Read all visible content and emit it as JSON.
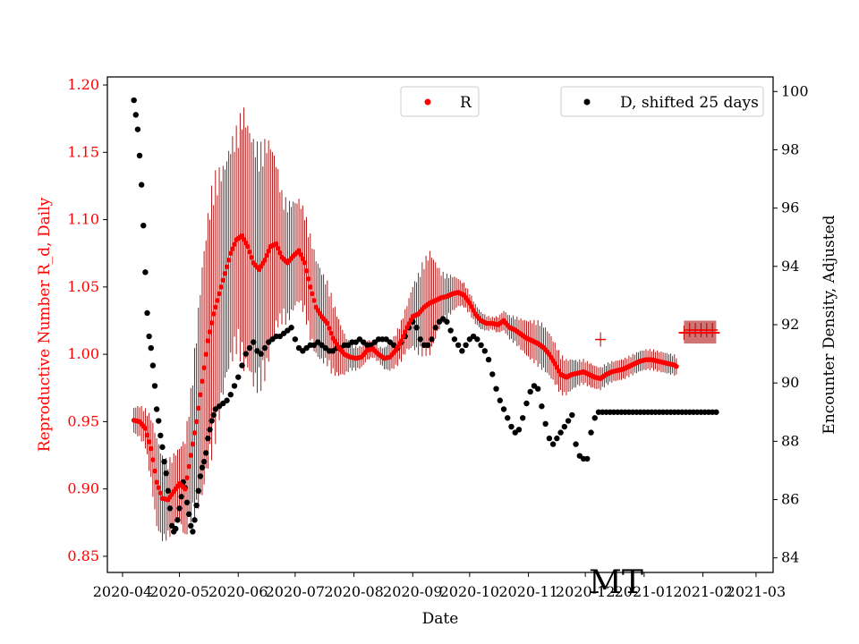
{
  "chart_data": {
    "type": "scatter",
    "state_label": "MT",
    "xlabel": "Date",
    "ylabel_left": "Reproductive Number R_d, Daily",
    "ylabel_right": "Encounter Density, Adjusted",
    "left_axis_color": "#ff0000",
    "x_ticks": [
      "2020-04",
      "2020-05",
      "2020-06",
      "2020-07",
      "2020-08",
      "2020-09",
      "2020-10",
      "2020-11",
      "2020-12",
      "2021-01",
      "2021-02",
      "2021-03"
    ],
    "x_range_days": [
      -8,
      343
    ],
    "y_left_range": [
      0.838,
      1.206
    ],
    "y_left_ticks": [
      "0.85",
      "0.90",
      "0.95",
      "1.00",
      "1.05",
      "1.10",
      "1.15",
      "1.20"
    ],
    "y_right_range": [
      83.5,
      100.5
    ],
    "y_right_ticks": [
      "84",
      "86",
      "88",
      "90",
      "92",
      "94",
      "96",
      "98",
      "100"
    ],
    "legend": {
      "r_label": "R",
      "d_label": "D, shifted 25 days"
    },
    "colors": {
      "r": "#ff0000",
      "r_error": "#aa0000",
      "d": "#000000"
    },
    "series_r_anchors": {
      "description_days_since_2020-04-01": true,
      "points": [
        [
          6,
          0.951
        ],
        [
          9,
          0.95
        ],
        [
          12,
          0.945
        ],
        [
          15,
          0.93
        ],
        [
          18,
          0.905
        ],
        [
          21,
          0.893
        ],
        [
          24,
          0.892
        ],
        [
          27,
          0.898
        ],
        [
          30,
          0.904
        ],
        [
          33,
          0.9
        ],
        [
          36,
          0.925
        ],
        [
          39,
          0.95
        ],
        [
          42,
          0.98
        ],
        [
          45,
          1.01
        ],
        [
          48,
          1.03
        ],
        [
          51,
          1.045
        ],
        [
          54,
          1.06
        ],
        [
          57,
          1.075
        ],
        [
          60,
          1.085
        ],
        [
          63,
          1.088
        ],
        [
          66,
          1.08
        ],
        [
          69,
          1.068
        ],
        [
          72,
          1.063
        ],
        [
          75,
          1.07
        ],
        [
          78,
          1.08
        ],
        [
          81,
          1.082
        ],
        [
          84,
          1.072
        ],
        [
          87,
          1.068
        ],
        [
          90,
          1.073
        ],
        [
          93,
          1.077
        ],
        [
          96,
          1.068
        ],
        [
          99,
          1.05
        ],
        [
          102,
          1.035
        ],
        [
          105,
          1.028
        ],
        [
          108,
          1.023
        ],
        [
          111,
          1.012
        ],
        [
          114,
          1.005
        ],
        [
          117,
          1.0
        ],
        [
          120,
          0.998
        ],
        [
          123,
          0.997
        ],
        [
          126,
          0.998
        ],
        [
          129,
          1.003
        ],
        [
          132,
          1.004
        ],
        [
          135,
          1.0
        ],
        [
          138,
          0.997
        ],
        [
          141,
          0.998
        ],
        [
          144,
          1.003
        ],
        [
          147,
          1.01
        ],
        [
          150,
          1.02
        ],
        [
          153,
          1.028
        ],
        [
          156,
          1.03
        ],
        [
          159,
          1.035
        ],
        [
          162,
          1.038
        ],
        [
          165,
          1.04
        ],
        [
          168,
          1.042
        ],
        [
          171,
          1.043
        ],
        [
          174,
          1.045
        ],
        [
          177,
          1.046
        ],
        [
          180,
          1.044
        ],
        [
          183,
          1.038
        ],
        [
          186,
          1.03
        ],
        [
          189,
          1.025
        ],
        [
          192,
          1.023
        ],
        [
          195,
          1.023
        ],
        [
          198,
          1.022
        ],
        [
          201,
          1.025
        ],
        [
          204,
          1.02
        ],
        [
          207,
          1.018
        ],
        [
          210,
          1.015
        ],
        [
          213,
          1.012
        ],
        [
          216,
          1.01
        ],
        [
          219,
          1.008
        ],
        [
          222,
          1.005
        ],
        [
          225,
          1.0
        ],
        [
          228,
          0.993
        ],
        [
          231,
          0.985
        ],
        [
          234,
          0.983
        ],
        [
          237,
          0.985
        ],
        [
          240,
          0.986
        ],
        [
          243,
          0.987
        ],
        [
          246,
          0.985
        ],
        [
          249,
          0.983
        ],
        [
          252,
          0.982
        ],
        [
          255,
          0.985
        ],
        [
          258,
          0.987
        ],
        [
          261,
          0.988
        ],
        [
          264,
          0.989
        ],
        [
          267,
          0.991
        ],
        [
          270,
          0.993
        ],
        [
          273,
          0.995
        ],
        [
          276,
          0.996
        ],
        [
          279,
          0.996
        ],
        [
          282,
          0.995
        ],
        [
          285,
          0.994
        ],
        [
          288,
          0.993
        ],
        [
          291,
          0.992
        ],
        [
          292,
          0.991
        ]
      ]
    },
    "series_r_error_anchors": [
      [
        6,
        0.01
      ],
      [
        12,
        0.015
      ],
      [
        18,
        0.035
      ],
      [
        24,
        0.03
      ],
      [
        30,
        0.028
      ],
      [
        36,
        0.05
      ],
      [
        42,
        0.09
      ],
      [
        48,
        0.105
      ],
      [
        54,
        0.085
      ],
      [
        60,
        0.085
      ],
      [
        64,
        0.1
      ],
      [
        66,
        0.095
      ],
      [
        70,
        0.095
      ],
      [
        76,
        0.09
      ],
      [
        84,
        0.05
      ],
      [
        92,
        0.04
      ],
      [
        100,
        0.04
      ],
      [
        110,
        0.03
      ],
      [
        120,
        0.01
      ],
      [
        135,
        0.006
      ],
      [
        150,
        0.018
      ],
      [
        158,
        0.035
      ],
      [
        162,
        0.04
      ],
      [
        168,
        0.02
      ],
      [
        178,
        0.01
      ],
      [
        195,
        0.005
      ],
      [
        210,
        0.012
      ],
      [
        220,
        0.018
      ],
      [
        232,
        0.015
      ],
      [
        240,
        0.01
      ],
      [
        260,
        0.008
      ],
      [
        292,
        0.008
      ]
    ],
    "series_r_outliers": [
      [
        252,
        1.011
      ],
      [
        296,
        1.016
      ],
      [
        299,
        1.018
      ],
      [
        302,
        1.018
      ],
      [
        305,
        1.018
      ],
      [
        308,
        1.018
      ],
      [
        311,
        1.018
      ]
    ],
    "series_d_anchors": {
      "description_days_since_2020-04-01": true,
      "points": [
        [
          6,
          99.7
        ],
        [
          7,
          99.2
        ],
        [
          8,
          98.7
        ],
        [
          9,
          97.8
        ],
        [
          10,
          96.8
        ],
        [
          11,
          95.4
        ],
        [
          12,
          93.8
        ],
        [
          13,
          92.4
        ],
        [
          14,
          91.6
        ],
        [
          15,
          91.2
        ],
        [
          16,
          90.6
        ],
        [
          17,
          89.9
        ],
        [
          18,
          89.1
        ],
        [
          19,
          88.7
        ],
        [
          20,
          88.2
        ],
        [
          21,
          87.8
        ],
        [
          22,
          87.3
        ],
        [
          23,
          86.9
        ],
        [
          24,
          86.3
        ],
        [
          25,
          85.7
        ],
        [
          26,
          85.1
        ],
        [
          27,
          84.9
        ],
        [
          28,
          85.0
        ],
        [
          29,
          85.3
        ],
        [
          30,
          85.7
        ],
        [
          31,
          86.1
        ],
        [
          32,
          86.6
        ],
        [
          33,
          86.4
        ],
        [
          34,
          85.9
        ],
        [
          35,
          85.5
        ],
        [
          36,
          85.1
        ],
        [
          37,
          84.9
        ],
        [
          38,
          85.3
        ],
        [
          39,
          85.8
        ],
        [
          40,
          86.3
        ],
        [
          41,
          86.8
        ],
        [
          42,
          87.1
        ],
        [
          43,
          87.3
        ],
        [
          44,
          87.6
        ],
        [
          45,
          88.1
        ],
        [
          46,
          88.4
        ],
        [
          47,
          88.7
        ],
        [
          48,
          88.9
        ],
        [
          49,
          89.1
        ],
        [
          51,
          89.2
        ],
        [
          53,
          89.3
        ],
        [
          55,
          89.4
        ],
        [
          57,
          89.6
        ],
        [
          59,
          89.9
        ],
        [
          61,
          90.2
        ],
        [
          63,
          90.6
        ],
        [
          65,
          91.0
        ],
        [
          67,
          91.2
        ],
        [
          69,
          91.4
        ],
        [
          71,
          91.1
        ],
        [
          73,
          91.0
        ],
        [
          75,
          91.2
        ],
        [
          77,
          91.4
        ],
        [
          79,
          91.5
        ],
        [
          81,
          91.6
        ],
        [
          83,
          91.6
        ],
        [
          85,
          91.7
        ],
        [
          87,
          91.8
        ],
        [
          89,
          91.9
        ],
        [
          91,
          91.5
        ],
        [
          93,
          91.2
        ],
        [
          95,
          91.1
        ],
        [
          97,
          91.2
        ],
        [
          99,
          91.3
        ],
        [
          101,
          91.3
        ],
        [
          103,
          91.4
        ],
        [
          105,
          91.3
        ],
        [
          107,
          91.2
        ],
        [
          109,
          91.1
        ],
        [
          111,
          91.1
        ],
        [
          113,
          91.2
        ],
        [
          115,
          91.2
        ],
        [
          117,
          91.3
        ],
        [
          119,
          91.3
        ],
        [
          121,
          91.4
        ],
        [
          123,
          91.4
        ],
        [
          125,
          91.5
        ],
        [
          127,
          91.4
        ],
        [
          129,
          91.3
        ],
        [
          131,
          91.3
        ],
        [
          133,
          91.4
        ],
        [
          135,
          91.5
        ],
        [
          137,
          91.5
        ],
        [
          139,
          91.5
        ],
        [
          141,
          91.4
        ],
        [
          143,
          91.3
        ],
        [
          145,
          91.2
        ],
        [
          147,
          91.4
        ],
        [
          149,
          91.6
        ],
        [
          151,
          91.9
        ],
        [
          153,
          92.1
        ],
        [
          155,
          91.9
        ],
        [
          157,
          91.5
        ],
        [
          159,
          91.3
        ],
        [
          161,
          91.3
        ],
        [
          163,
          91.5
        ],
        [
          165,
          91.9
        ],
        [
          167,
          92.1
        ],
        [
          169,
          92.2
        ],
        [
          171,
          92.1
        ],
        [
          173,
          91.8
        ],
        [
          175,
          91.5
        ],
        [
          177,
          91.3
        ],
        [
          179,
          91.1
        ],
        [
          181,
          91.3
        ],
        [
          183,
          91.5
        ],
        [
          185,
          91.6
        ],
        [
          187,
          91.5
        ],
        [
          189,
          91.3
        ],
        [
          191,
          91.1
        ],
        [
          193,
          90.8
        ],
        [
          195,
          90.3
        ],
        [
          197,
          89.8
        ],
        [
          199,
          89.4
        ],
        [
          201,
          89.1
        ],
        [
          203,
          88.8
        ],
        [
          205,
          88.5
        ],
        [
          207,
          88.3
        ],
        [
          209,
          88.4
        ],
        [
          211,
          88.8
        ],
        [
          213,
          89.3
        ],
        [
          215,
          89.7
        ],
        [
          217,
          89.9
        ],
        [
          219,
          89.8
        ],
        [
          221,
          89.2
        ],
        [
          223,
          88.6
        ],
        [
          225,
          88.1
        ],
        [
          227,
          87.9
        ],
        [
          229,
          88.1
        ],
        [
          231,
          88.3
        ],
        [
          233,
          88.5
        ],
        [
          235,
          88.7
        ],
        [
          237,
          88.9
        ],
        [
          239,
          87.9
        ],
        [
          241,
          87.5
        ],
        [
          243,
          87.4
        ],
        [
          245,
          87.4
        ],
        [
          247,
          88.3
        ],
        [
          249,
          88.8
        ],
        [
          251,
          89.0
        ],
        [
          253,
          89.0
        ],
        [
          255,
          89.0
        ],
        [
          257,
          89.0
        ],
        [
          259,
          89.0
        ],
        [
          261,
          89.0
        ],
        [
          263,
          89.0
        ],
        [
          265,
          89.0
        ],
        [
          267,
          89.0
        ],
        [
          269,
          89.0
        ],
        [
          271,
          89.0
        ],
        [
          273,
          89.0
        ],
        [
          275,
          89.0
        ],
        [
          277,
          89.0
        ],
        [
          279,
          89.0
        ],
        [
          281,
          89.0
        ],
        [
          283,
          89.0
        ],
        [
          285,
          89.0
        ],
        [
          287,
          89.0
        ],
        [
          289,
          89.0
        ],
        [
          291,
          89.0
        ],
        [
          293,
          89.0
        ],
        [
          295,
          89.0
        ],
        [
          297,
          89.0
        ],
        [
          299,
          89.0
        ],
        [
          301,
          89.0
        ],
        [
          303,
          89.0
        ],
        [
          305,
          89.0
        ],
        [
          307,
          89.0
        ],
        [
          309,
          89.0
        ],
        [
          311,
          89.0
        ],
        [
          313,
          89.0
        ]
      ]
    }
  }
}
